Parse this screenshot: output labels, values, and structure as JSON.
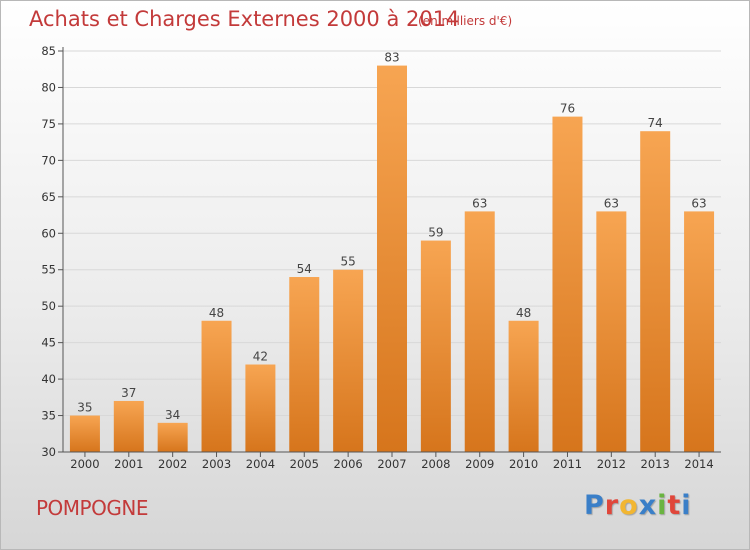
{
  "header": {
    "title": "Achats et Charges Externes 2000 à 2014",
    "unit": "(en milliers d'€)"
  },
  "footer": {
    "commune": "POMPOGNE",
    "logo": "Proxiti",
    "logo_colors": [
      "#3a7fc8",
      "#e0463a",
      "#f2b631",
      "#3a7fc8",
      "#6ab440",
      "#e0463a",
      "#3a7fc8"
    ]
  },
  "colors": {
    "bar_top": "#f7a552",
    "bar_bottom": "#d6751c",
    "axis": "#555555",
    "grid": "#d8d8d8",
    "title": "#c33a3a"
  },
  "chart_data": {
    "type": "bar",
    "title": "Achats et Charges Externes 2000 à 2014",
    "xlabel": "",
    "ylabel": "",
    "categories": [
      "2000",
      "2001",
      "2002",
      "2003",
      "2004",
      "2005",
      "2006",
      "2007",
      "2008",
      "2009",
      "2010",
      "2011",
      "2012",
      "2013",
      "2014"
    ],
    "values": [
      35,
      37,
      34,
      48,
      42,
      54,
      55,
      83,
      59,
      63,
      48,
      76,
      63,
      74,
      63
    ],
    "ylim": [
      30,
      85
    ],
    "yticks": [
      30,
      35,
      40,
      45,
      50,
      55,
      60,
      65,
      70,
      75,
      80,
      85
    ],
    "grid": true,
    "data_labels": true
  }
}
